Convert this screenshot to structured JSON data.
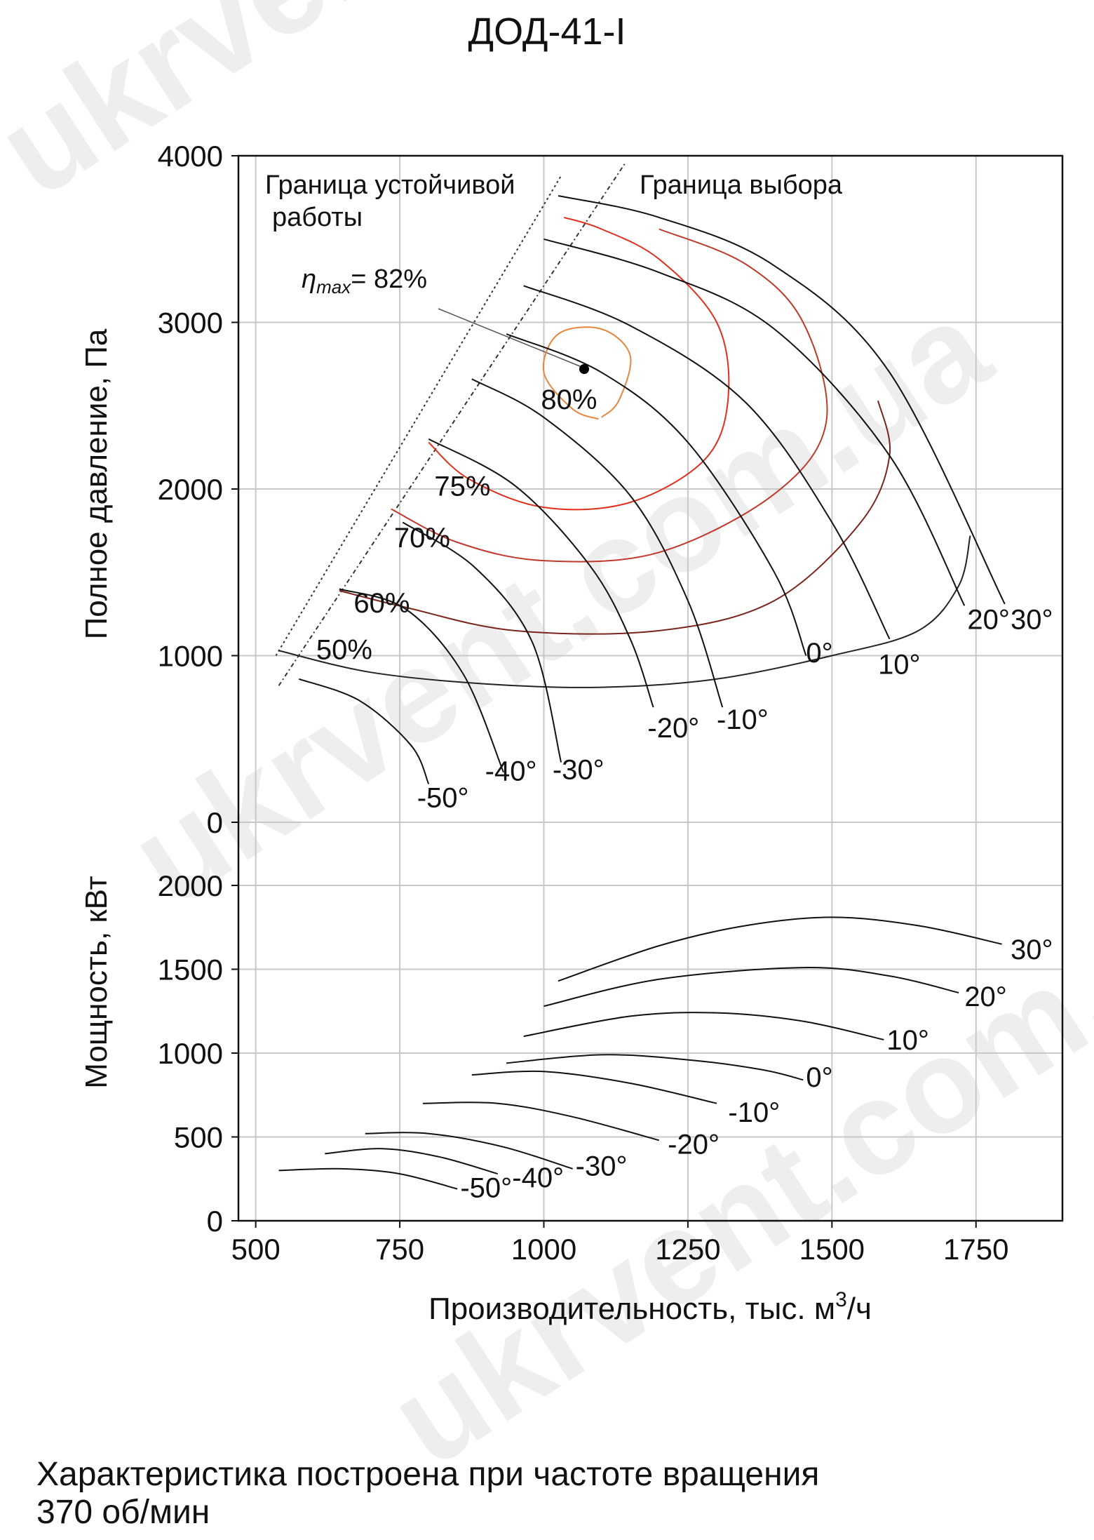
{
  "title": "ДОД-41-I",
  "note": {
    "line1": "Характеристика построена при частоте вращения",
    "line2": "370 об/мин"
  },
  "watermark": "ukrvent.com.ua",
  "colors": {
    "grid": "#c8c8c8",
    "curve": "#111111",
    "eff_80": "#e0301e",
    "eff_outer": "#e8863c",
    "eff_75": "#c0392b",
    "eff_70": "#a93226",
    "eff_60": "#7b241c",
    "eff_50": "#222222"
  },
  "chart_data": [
    {
      "type": "line",
      "panel": "pressure",
      "ylabel": "Полное давление, Па",
      "yticks": [
        "4000",
        "3000",
        "2000",
        "1000",
        "0"
      ],
      "ylim": [
        0,
        4000
      ],
      "xlim": [
        470,
        1900
      ],
      "grid": true,
      "annotations": {
        "stable_boundary": "Граница устойчивой работы",
        "selection_boundary": "Граница выбора",
        "eta_max": "ηmax= 82%",
        "eta_max_prefix": "η",
        "eta_max_sub": "max",
        "eta_max_value": "= 82%"
      },
      "eta_max_point": {
        "x": 1070,
        "y": 2720
      },
      "stable_boundary_line": [
        [
          535,
          1000
        ],
        [
          1030,
          3880
        ]
      ],
      "selection_boundary_line": [
        [
          540,
          820
        ],
        [
          1140,
          3950
        ]
      ],
      "series": [
        {
          "name": "30°",
          "label": "30°",
          "label_at": [
            1810,
            1160
          ],
          "values": [
            [
              1025,
              3760
            ],
            [
              1200,
              3630
            ],
            [
              1400,
              3340
            ],
            [
              1600,
              2700
            ],
            [
              1800,
              1310
            ]
          ]
        },
        {
          "name": "20°",
          "label": "20°",
          "label_at": [
            1735,
            1160
          ],
          "values": [
            [
              1000,
              3500
            ],
            [
              1200,
              3300
            ],
            [
              1400,
              2960
            ],
            [
              1600,
              2200
            ],
            [
              1730,
              1300
            ]
          ]
        },
        {
          "name": "10°",
          "label": "10°",
          "label_at": [
            1580,
            890
          ],
          "values": [
            [
              965,
              3220
            ],
            [
              1150,
              2980
            ],
            [
              1350,
              2520
            ],
            [
              1500,
              1800
            ],
            [
              1600,
              1100
            ]
          ]
        },
        {
          "name": "0°",
          "label": "0°",
          "label_at": [
            1455,
            960
          ],
          "values": [
            [
              935,
              2930
            ],
            [
              1100,
              2700
            ],
            [
              1250,
              2280
            ],
            [
              1400,
              1500
            ],
            [
              1455,
              1000
            ]
          ]
        },
        {
          "name": "-10°",
          "label": "-10°",
          "label_at": [
            1300,
            560
          ],
          "values": [
            [
              875,
              2660
            ],
            [
              1000,
              2430
            ],
            [
              1150,
              1960
            ],
            [
              1250,
              1330
            ],
            [
              1310,
              690
            ]
          ]
        },
        {
          "name": "-20°",
          "label": "-20°",
          "label_at": [
            1180,
            510
          ],
          "values": [
            [
              800,
              2300
            ],
            [
              950,
              2020
            ],
            [
              1080,
              1540
            ],
            [
              1150,
              1100
            ],
            [
              1190,
              690
            ]
          ]
        },
        {
          "name": "-30°",
          "label": "-30°",
          "label_at": [
            1015,
            260
          ],
          "values": [
            [
              755,
              1800
            ],
            [
              880,
              1530
            ],
            [
              980,
              1080
            ],
            [
              1030,
              360
            ]
          ]
        },
        {
          "name": "-40°",
          "label": "-40°",
          "label_at": [
            898,
            250
          ],
          "values": [
            [
              645,
              1400
            ],
            [
              760,
              1280
            ],
            [
              860,
              890
            ],
            [
              930,
              300
            ]
          ]
        },
        {
          "name": "-50°",
          "label": "-50°",
          "label_at": [
            780,
            90
          ],
          "values": [
            [
              575,
              860
            ],
            [
              680,
              730
            ],
            [
              770,
              460
            ],
            [
              800,
              230
            ]
          ]
        }
      ],
      "efficiency_contours": [
        {
          "name": "80%",
          "label": "80%",
          "label_at": [
            995,
            2480
          ],
          "values": [
            [
              1095,
              2420
            ],
            [
              1050,
              2480
            ],
            [
              1000,
              2700
            ],
            [
              1025,
              2930
            ],
            [
              1100,
              2960
            ],
            [
              1150,
              2800
            ],
            [
              1130,
              2530
            ],
            [
              1100,
              2430
            ]
          ]
        },
        {
          "name": "75%",
          "label": "75%",
          "label_at": [
            810,
            1960
          ],
          "values": [
            [
              800,
              2280
            ],
            [
              870,
              2060
            ],
            [
              1000,
              1890
            ],
            [
              1150,
              1920
            ],
            [
              1280,
              2180
            ],
            [
              1320,
              2550
            ],
            [
              1300,
              3000
            ],
            [
              1200,
              3380
            ],
            [
              1100,
              3560
            ],
            [
              1035,
              3630
            ]
          ]
        },
        {
          "name": "70%",
          "label": "70%",
          "label_at": [
            740,
            1650
          ],
          "values": [
            [
              735,
              1880
            ],
            [
              850,
              1680
            ],
            [
              1000,
              1570
            ],
            [
              1200,
              1620
            ],
            [
              1400,
              1970
            ],
            [
              1490,
              2400
            ],
            [
              1450,
              3000
            ],
            [
              1350,
              3350
            ],
            [
              1200,
              3560
            ]
          ]
        },
        {
          "name": "60%",
          "label": "60%",
          "label_at": [
            670,
            1260
          ],
          "values": [
            [
              645,
              1390
            ],
            [
              760,
              1290
            ],
            [
              950,
              1150
            ],
            [
              1200,
              1150
            ],
            [
              1400,
              1330
            ],
            [
              1550,
              1800
            ],
            [
              1600,
              2200
            ],
            [
              1580,
              2530
            ]
          ]
        },
        {
          "name": "50%",
          "label": "50%",
          "label_at": [
            605,
            980
          ],
          "values": [
            [
              540,
              1030
            ],
            [
              700,
              900
            ],
            [
              900,
              830
            ],
            [
              1100,
              810
            ],
            [
              1300,
              860
            ],
            [
              1500,
              1000
            ],
            [
              1650,
              1150
            ],
            [
              1720,
              1420
            ],
            [
              1740,
              1720
            ]
          ]
        }
      ]
    },
    {
      "type": "line",
      "panel": "power",
      "xlabel": "Производительность, тыс. м³/ч",
      "xlabel_prefix": "Производительность, тыс. м",
      "xlabel_sup": "3",
      "xlabel_suffix": "/ч",
      "ylabel": "Мощность, кВт",
      "yticks": [
        "2000",
        "1500",
        "1000",
        "500",
        "0"
      ],
      "xticks": [
        "500",
        "750",
        "1000",
        "1250",
        "1500",
        "1750"
      ],
      "ylim": [
        0,
        2000
      ],
      "xlim": [
        470,
        1900
      ],
      "grid": true,
      "series": [
        {
          "name": "30°",
          "label": "30°",
          "label_at": [
            1810,
            1560
          ],
          "values": [
            [
              1025,
              1430
            ],
            [
              1200,
              1640
            ],
            [
              1350,
              1760
            ],
            [
              1500,
              1810
            ],
            [
              1650,
              1760
            ],
            [
              1795,
              1650
            ]
          ]
        },
        {
          "name": "20°",
          "label": "20°",
          "label_at": [
            1730,
            1280
          ],
          "values": [
            [
              1000,
              1280
            ],
            [
              1200,
              1440
            ],
            [
              1450,
              1510
            ],
            [
              1600,
              1460
            ],
            [
              1720,
              1360
            ]
          ]
        },
        {
          "name": "10°",
          "label": "10°",
          "label_at": [
            1595,
            1020
          ],
          "values": [
            [
              965,
              1100
            ],
            [
              1150,
              1220
            ],
            [
              1300,
              1240
            ],
            [
              1450,
              1190
            ],
            [
              1590,
              1080
            ]
          ]
        },
        {
          "name": "0°",
          "label": "0°",
          "label_at": [
            1455,
            800
          ],
          "values": [
            [
              935,
              940
            ],
            [
              1100,
              990
            ],
            [
              1250,
              960
            ],
            [
              1380,
              900
            ],
            [
              1450,
              840
            ]
          ]
        },
        {
          "name": "-10°",
          "label": "-10°",
          "label_at": [
            1320,
            590
          ],
          "values": [
            [
              875,
              870
            ],
            [
              1000,
              890
            ],
            [
              1150,
              820
            ],
            [
              1300,
              700
            ]
          ]
        },
        {
          "name": "-20°",
          "label": "-20°",
          "label_at": [
            1215,
            400
          ],
          "values": [
            [
              790,
              700
            ],
            [
              920,
              700
            ],
            [
              1050,
              620
            ],
            [
              1200,
              480
            ]
          ]
        },
        {
          "name": "-30°",
          "label": "-30°",
          "label_at": [
            1055,
            270
          ],
          "values": [
            [
              690,
              520
            ],
            [
              800,
              520
            ],
            [
              930,
              440
            ],
            [
              1050,
              310
            ]
          ]
        },
        {
          "name": "-40°",
          "label": "-40°",
          "label_at": [
            945,
            200
          ],
          "values": [
            [
              620,
              400
            ],
            [
              720,
              430
            ],
            [
              820,
              380
            ],
            [
              920,
              280
            ]
          ]
        },
        {
          "name": "-50°",
          "label": "-50°",
          "label_at": [
            855,
            140
          ],
          "values": [
            [
              540,
              300
            ],
            [
              650,
              310
            ],
            [
              750,
              280
            ],
            [
              850,
              190
            ]
          ]
        }
      ]
    }
  ]
}
